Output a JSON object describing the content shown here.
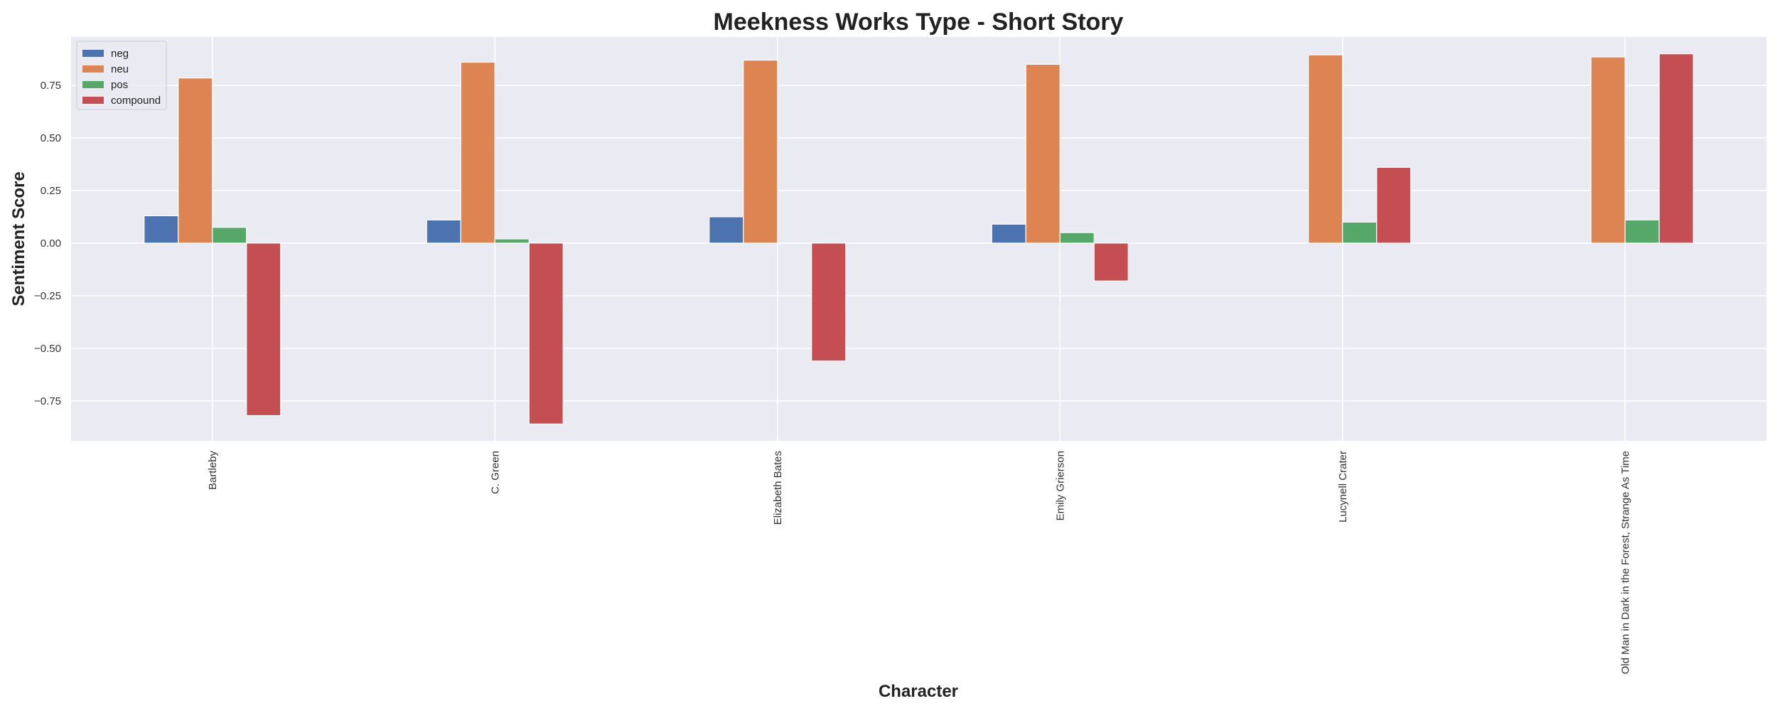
{
  "chart_data": {
    "type": "bar",
    "title": "Meekness Works Type - Short Story",
    "xlabel": "Character",
    "ylabel": "Sentiment Score",
    "categories": [
      "Bartleby",
      "C. Green",
      "Elizabeth Bates",
      "Emily Grierson",
      "Lucynell Crater",
      "Old Man in Dark in the Forest, Strange As Time"
    ],
    "series": [
      {
        "name": "neg",
        "color": "#4c72b0",
        "values": [
          0.13,
          0.11,
          0.125,
          0.09,
          0.0,
          0.0
        ]
      },
      {
        "name": "neu",
        "color": "#dd8452",
        "values": [
          0.785,
          0.86,
          0.87,
          0.85,
          0.895,
          0.885
        ]
      },
      {
        "name": "pos",
        "color": "#55a868",
        "values": [
          0.075,
          0.02,
          0.0,
          0.05,
          0.1,
          0.11
        ]
      },
      {
        "name": "compound",
        "color": "#c44e52",
        "values": [
          -0.82,
          -0.86,
          -0.56,
          -0.18,
          0.36,
          0.9
        ]
      }
    ],
    "ylim": [
      -0.94,
      0.98
    ],
    "yticks": [
      -0.75,
      -0.5,
      -0.25,
      0.0,
      0.25,
      0.5,
      0.75
    ],
    "ytick_labels": [
      "−0.75",
      "−0.50",
      "−0.25",
      "0.00",
      "0.25",
      "0.50",
      "0.75"
    ],
    "grid": true,
    "legend_position": "top-left",
    "background_color": "#eaeaf2",
    "grid_color": "#ffffff"
  }
}
